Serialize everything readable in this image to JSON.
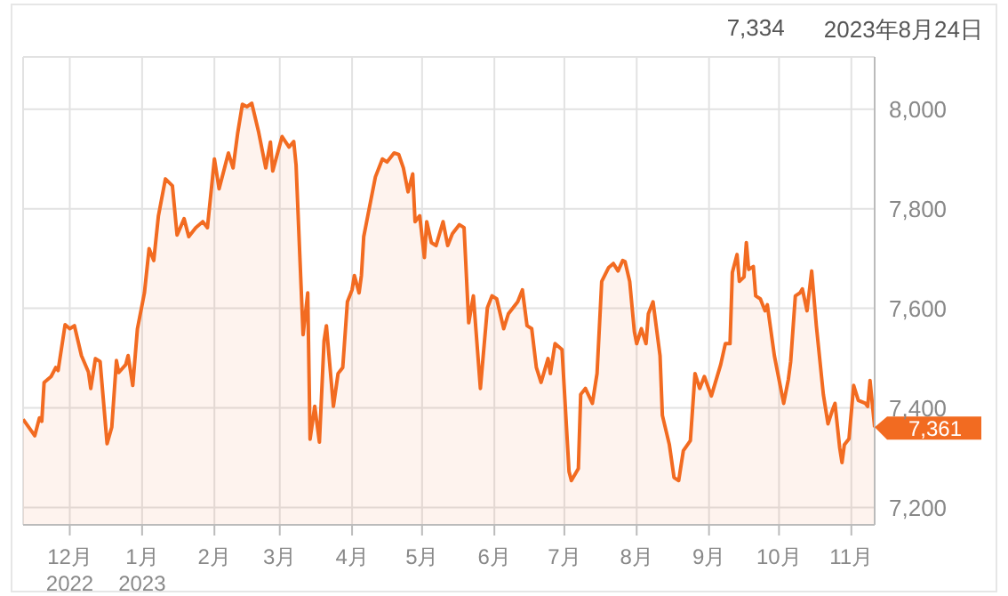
{
  "chart_data": {
    "type": "area",
    "annotations": [
      "7,334",
      "2023年8月24日",
      {
        "text": "7,361",
        "x": "2023-11-11",
        "y": 7361
      }
    ],
    "x": [
      "2022-11-11",
      "2022-11-16",
      "2022-11-18",
      "2022-11-19",
      "2022-11-20",
      "2022-11-23",
      "2022-11-25",
      "2022-11-26",
      "2022-11-29",
      "2022-12-01",
      "2022-12-03",
      "2022-12-06",
      "2022-12-09",
      "2022-12-10",
      "2022-12-12",
      "2022-12-14",
      "2022-12-17",
      "2022-12-19",
      "2022-12-21",
      "2022-12-22",
      "2022-12-25",
      "2022-12-26",
      "2022-12-28",
      "2022-12-30",
      "2023-01-02",
      "2023-01-04",
      "2023-01-06",
      "2023-01-08",
      "2023-01-11",
      "2023-01-14",
      "2023-01-16",
      "2023-01-19",
      "2023-01-21",
      "2023-01-24",
      "2023-01-27",
      "2023-01-29",
      "2023-02-01",
      "2023-02-03",
      "2023-02-07",
      "2023-02-09",
      "2023-02-11",
      "2023-02-13",
      "2023-02-15",
      "2023-02-17",
      "2023-02-20",
      "2023-02-23",
      "2023-02-25",
      "2023-02-26",
      "2023-03-02",
      "2023-03-05",
      "2023-03-07",
      "2023-03-08",
      "2023-03-11",
      "2023-03-13",
      "2023-03-14",
      "2023-03-16",
      "2023-03-18",
      "2023-03-20",
      "2023-03-21",
      "2023-03-24",
      "2023-03-26",
      "2023-03-28",
      "2023-03-30",
      "2023-04-01",
      "2023-04-02",
      "2023-04-04",
      "2023-04-05",
      "2023-04-06",
      "2023-04-09",
      "2023-04-11",
      "2023-04-14",
      "2023-04-16",
      "2023-04-19",
      "2023-04-21",
      "2023-04-23",
      "2023-04-25",
      "2023-04-27",
      "2023-04-28",
      "2023-04-30",
      "2023-05-02",
      "2023-05-03",
      "2023-05-05",
      "2023-05-07",
      "2023-05-10",
      "2023-05-12",
      "2023-05-14",
      "2023-05-17",
      "2023-05-19",
      "2023-05-21",
      "2023-05-23",
      "2023-05-26",
      "2023-05-29",
      "2023-05-31",
      "2023-06-02",
      "2023-06-05",
      "2023-06-07",
      "2023-06-11",
      "2023-06-13",
      "2023-06-15",
      "2023-06-17",
      "2023-06-19",
      "2023-06-21",
      "2023-06-24",
      "2023-06-25",
      "2023-06-27",
      "2023-06-30",
      "2023-07-03",
      "2023-07-04",
      "2023-07-07",
      "2023-07-08",
      "2023-07-10",
      "2023-07-13",
      "2023-07-15",
      "2023-07-17",
      "2023-07-20",
      "2023-07-22",
      "2023-07-24",
      "2023-07-26",
      "2023-07-27",
      "2023-07-29",
      "2023-07-31",
      "2023-08-01",
      "2023-08-03",
      "2023-08-05",
      "2023-08-06",
      "2023-08-08",
      "2023-08-11",
      "2023-08-12",
      "2023-08-15",
      "2023-08-17",
      "2023-08-19",
      "2023-08-21",
      "2023-08-24",
      "2023-08-26",
      "2023-08-28",
      "2023-08-30",
      "2023-09-02",
      "2023-09-06",
      "2023-09-08",
      "2023-09-10",
      "2023-09-11",
      "2023-09-13",
      "2023-09-14",
      "2023-09-16",
      "2023-09-17",
      "2023-09-18",
      "2023-09-20",
      "2023-09-21",
      "2023-09-23",
      "2023-09-25",
      "2023-09-26",
      "2023-09-29",
      "2023-10-03",
      "2023-10-05",
      "2023-10-06",
      "2023-10-08",
      "2023-10-10",
      "2023-10-11",
      "2023-10-13",
      "2023-10-15",
      "2023-10-17",
      "2023-10-20",
      "2023-10-22",
      "2023-10-24",
      "2023-10-25",
      "2023-10-27",
      "2023-10-28",
      "2023-10-29",
      "2023-10-31",
      "2023-11-02",
      "2023-11-04",
      "2023-11-07",
      "2023-11-08",
      "2023-11-09",
      "2023-11-11"
    ],
    "series": [
      {
        "color": "#f26b21",
        "values": [
          7377,
          7344,
          7380,
          7373,
          7451,
          7463,
          7481,
          7475,
          7567,
          7559,
          7565,
          7505,
          7472,
          7439,
          7499,
          7493,
          7328,
          7361,
          7495,
          7471,
          7487,
          7505,
          7445,
          7559,
          7631,
          7720,
          7696,
          7786,
          7860,
          7846,
          7747,
          7780,
          7744,
          7762,
          7774,
          7762,
          7900,
          7840,
          7912,
          7882,
          7953,
          8010,
          8005,
          8012,
          7953,
          7882,
          7934,
          7876,
          7945,
          7924,
          7935,
          7888,
          7547,
          7631,
          7337,
          7403,
          7331,
          7535,
          7565,
          7403,
          7469,
          7481,
          7613,
          7637,
          7666,
          7631,
          7666,
          7744,
          7816,
          7864,
          7900,
          7894,
          7912,
          7909,
          7882,
          7834,
          7870,
          7774,
          7786,
          7702,
          7774,
          7732,
          7726,
          7774,
          7726,
          7750,
          7768,
          7762,
          7571,
          7625,
          7439,
          7601,
          7625,
          7619,
          7559,
          7589,
          7613,
          7637,
          7565,
          7559,
          7481,
          7451,
          7499,
          7469,
          7529,
          7517,
          7272,
          7254,
          7278,
          7427,
          7439,
          7409,
          7469,
          7654,
          7682,
          7690,
          7675,
          7696,
          7694,
          7654,
          7553,
          7529,
          7559,
          7529,
          7589,
          7613,
          7505,
          7385,
          7326,
          7260,
          7254,
          7314,
          7334,
          7469,
          7439,
          7463,
          7424,
          7487,
          7529,
          7529,
          7672,
          7708,
          7654,
          7663,
          7732,
          7678,
          7684,
          7625,
          7619,
          7595,
          7607,
          7505,
          7409,
          7457,
          7493,
          7625,
          7631,
          7639,
          7595,
          7675,
          7565,
          7427,
          7368,
          7397,
          7409,
          7320,
          7290,
          7326,
          7338,
          7445,
          7415,
          7409,
          7403,
          7455,
          7361
        ]
      }
    ],
    "xlim": [
      "2022-11-11",
      "2023-11-11"
    ],
    "xticks": [
      {
        "value": "2022-12-01",
        "label": "12月\n2022"
      },
      {
        "value": "2023-01-01",
        "label": "1月\n2023"
      },
      {
        "value": "2023-02-01",
        "label": "2月"
      },
      {
        "value": "2023-03-01",
        "label": "3月"
      },
      {
        "value": "2023-04-01",
        "label": "4月"
      },
      {
        "value": "2023-05-01",
        "label": "5月"
      },
      {
        "value": "2023-06-01",
        "label": "6月"
      },
      {
        "value": "2023-07-01",
        "label": "7月"
      },
      {
        "value": "2023-08-01",
        "label": "8月"
      },
      {
        "value": "2023-09-01",
        "label": "9月"
      },
      {
        "value": "2023-10-01",
        "label": "10月"
      },
      {
        "value": "2023-11-01",
        "label": "11月"
      }
    ],
    "ylim": [
      7165,
      8105
    ],
    "yticks": [
      {
        "value": 7200,
        "label": "7,200"
      },
      {
        "value": 7400,
        "label": "7,400"
      },
      {
        "value": 7600,
        "label": "7,600"
      },
      {
        "value": 7800,
        "label": "7,800"
      },
      {
        "value": 8000,
        "label": "8,000"
      }
    ],
    "grid": true
  }
}
